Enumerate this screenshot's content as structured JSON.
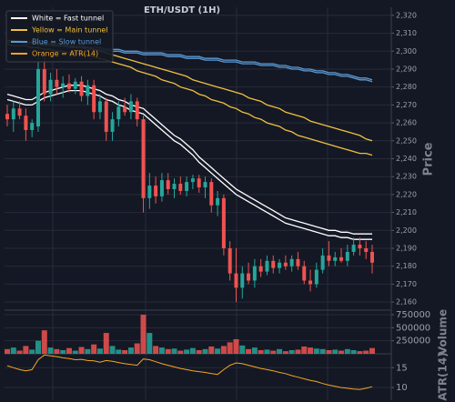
{
  "chart_data": {
    "type": "candlestick",
    "title": "ETH/USDT (1H)",
    "ylabel": "Price",
    "volume_label": "Volume",
    "atr_label": "ATR(14)",
    "up_color": "#26a69a",
    "down_color": "#ef5350",
    "atr_color": "#f5a623",
    "grid": true,
    "ylim": [
      2156,
      2324.5
    ],
    "yticks": [
      {
        "value": 2160,
        "label": "2,160"
      },
      {
        "value": 2170,
        "label": "2,170"
      },
      {
        "value": 2180,
        "label": "2,180"
      },
      {
        "value": 2190,
        "label": "2,190"
      },
      {
        "value": 2200,
        "label": "2,200"
      },
      {
        "value": 2210,
        "label": "2,210"
      },
      {
        "value": 2220,
        "label": "2,220"
      },
      {
        "value": 2230,
        "label": "2,230"
      },
      {
        "value": 2240,
        "label": "2,240"
      },
      {
        "value": 2250,
        "label": "2,250"
      },
      {
        "value": 2260,
        "label": "2,260"
      },
      {
        "value": 2270,
        "label": "2,270"
      },
      {
        "value": 2280,
        "label": "2,280"
      },
      {
        "value": 2290,
        "label": "2,290"
      },
      {
        "value": 2300,
        "label": "2,300"
      },
      {
        "value": 2310,
        "label": "2,310"
      },
      {
        "value": 2320,
        "label": "2,320"
      }
    ],
    "volume_ylim": [
      0,
      820000
    ],
    "volume_yticks": [
      250000,
      500000,
      750000
    ],
    "atr_ylim": [
      6.8,
      18.5
    ],
    "atr_yticks": [
      10,
      15
    ],
    "legend": [
      {
        "label": "White = Fast tunnel",
        "color": "#ffffff"
      },
      {
        "label": "Yellow = Main tunnel",
        "color": "#f0c040"
      },
      {
        "label": "Blue = Slow tunnel",
        "color": "#5b9bd5"
      },
      {
        "label": "Orange = ATR(14)",
        "color": "#f5a623"
      }
    ],
    "open": [
      2265,
      2262,
      2268,
      2264,
      2256,
      2258,
      2290,
      2276,
      2284,
      2280,
      2282,
      2279,
      2283,
      2275,
      2281,
      2266,
      2272,
      2255,
      2262,
      2269,
      2266,
      2272,
      2262,
      2218,
      2225,
      2219,
      2228,
      2223,
      2226,
      2222,
      2227,
      2229,
      2224,
      2227,
      2214,
      2218,
      2190,
      2176,
      2168,
      2176,
      2172,
      2180,
      2177,
      2183,
      2179,
      2182,
      2180,
      2184,
      2180,
      2172,
      2170,
      2178,
      2186,
      2183,
      2185,
      2183,
      2188,
      2192,
      2190,
      2188
    ],
    "high": [
      2270,
      2272,
      2272,
      2268,
      2262,
      2312,
      2300,
      2288,
      2290,
      2286,
      2287,
      2285,
      2286,
      2284,
      2284,
      2276,
      2274,
      2266,
      2272,
      2274,
      2276,
      2274,
      2264,
      2232,
      2230,
      2232,
      2232,
      2229,
      2230,
      2230,
      2231,
      2231,
      2230,
      2229,
      2222,
      2220,
      2194,
      2190,
      2180,
      2182,
      2184,
      2184,
      2186,
      2186,
      2184,
      2186,
      2186,
      2188,
      2183,
      2178,
      2182,
      2190,
      2194,
      2188,
      2190,
      2192,
      2196,
      2196,
      2194,
      2192
    ],
    "low": [
      2258,
      2255,
      2262,
      2250,
      2252,
      2255,
      2272,
      2272,
      2276,
      2274,
      2277,
      2276,
      2272,
      2270,
      2262,
      2262,
      2250,
      2250,
      2258,
      2264,
      2262,
      2258,
      2210,
      2212,
      2215,
      2216,
      2220,
      2218,
      2220,
      2219,
      2223,
      2221,
      2218,
      2210,
      2208,
      2186,
      2172,
      2160,
      2162,
      2170,
      2168,
      2174,
      2175,
      2176,
      2176,
      2178,
      2177,
      2178,
      2170,
      2166,
      2168,
      2176,
      2180,
      2180,
      2182,
      2180,
      2186,
      2186,
      2184,
      2176
    ],
    "close": [
      2262,
      2268,
      2264,
      2256,
      2260,
      2290,
      2276,
      2284,
      2280,
      2282,
      2279,
      2283,
      2275,
      2281,
      2266,
      2272,
      2255,
      2262,
      2269,
      2266,
      2272,
      2262,
      2218,
      2225,
      2219,
      2228,
      2223,
      2226,
      2222,
      2227,
      2229,
      2224,
      2227,
      2214,
      2218,
      2190,
      2176,
      2168,
      2176,
      2172,
      2180,
      2177,
      2183,
      2179,
      2182,
      2180,
      2184,
      2180,
      2172,
      2170,
      2178,
      2186,
      2183,
      2185,
      2183,
      2188,
      2192,
      2190,
      2188,
      2182
    ],
    "volume": [
      90000,
      120000,
      60000,
      150000,
      80000,
      250000,
      450000,
      120000,
      90000,
      70000,
      110000,
      60000,
      130000,
      90000,
      180000,
      100000,
      400000,
      150000,
      80000,
      70000,
      120000,
      200000,
      750000,
      400000,
      150000,
      120000,
      90000,
      100000,
      60000,
      80000,
      110000,
      70000,
      90000,
      140000,
      100000,
      150000,
      220000,
      280000,
      160000,
      90000,
      120000,
      70000,
      80000,
      60000,
      90000,
      50000,
      70000,
      80000,
      140000,
      120000,
      100000,
      90000,
      70000,
      80000,
      60000,
      90000,
      70000,
      50000,
      60000,
      110000
    ],
    "atr": [
      15.5,
      15,
      14.5,
      14.2,
      14.5,
      17,
      18.2,
      18,
      17.8,
      17.5,
      17.3,
      17,
      17.1,
      16.8,
      16.7,
      16.4,
      16.8,
      16.6,
      16.3,
      16,
      15.8,
      15.6,
      17.2,
      17,
      16.5,
      16,
      15.6,
      15.2,
      14.8,
      14.5,
      14.2,
      14,
      13.8,
      13.5,
      13.3,
      14.5,
      15.6,
      16.2,
      16,
      15.6,
      15.2,
      14.8,
      14.5,
      14.2,
      13.8,
      13.5,
      13,
      12.6,
      12.2,
      11.8,
      11.5,
      11,
      10.6,
      10.3,
      10,
      9.8,
      9.6,
      9.5,
      9.8,
      10.2
    ],
    "tunnels": [
      {
        "color": "#5b9bd5",
        "upper": [
          2306,
          2306,
          2306,
          2305,
          2305,
          2305,
          2304,
          2304,
          2304,
          2304,
          2303,
          2303,
          2303,
          2302,
          2302,
          2302,
          2301,
          2301,
          2301,
          2300,
          2300,
          2300,
          2299,
          2299,
          2299,
          2299,
          2298,
          2298,
          2298,
          2297,
          2297,
          2297,
          2296,
          2296,
          2296,
          2295,
          2295,
          2295,
          2294,
          2294,
          2294,
          2293,
          2293,
          2293,
          2292,
          2292,
          2291,
          2291,
          2290,
          2290,
          2289,
          2289,
          2288,
          2288,
          2287,
          2287,
          2286,
          2285,
          2285,
          2284
        ],
        "lower": [
          2305,
          2305,
          2305,
          2304,
          2304,
          2304,
          2303,
          2303,
          2303,
          2303,
          2302,
          2302,
          2302,
          2301,
          2301,
          2301,
          2300,
          2300,
          2300,
          2299,
          2299,
          2299,
          2298,
          2298,
          2298,
          2298,
          2297,
          2297,
          2297,
          2296,
          2296,
          2296,
          2295,
          2295,
          2295,
          2294,
          2294,
          2294,
          2293,
          2293,
          2293,
          2292,
          2292,
          2292,
          2291,
          2291,
          2290,
          2290,
          2289,
          2289,
          2288,
          2288,
          2287,
          2287,
          2286,
          2286,
          2285,
          2284,
          2284,
          2283
        ]
      },
      {
        "color": "#f0c040",
        "upper": [
          2306,
          2306,
          2305,
          2305,
          2305,
          2304,
          2304,
          2304,
          2303,
          2303,
          2303,
          2302,
          2302,
          2302,
          2301,
          2300,
          2299,
          2298,
          2297,
          2296,
          2295,
          2294,
          2293,
          2292,
          2291,
          2290,
          2289,
          2288,
          2287,
          2286,
          2284,
          2283,
          2282,
          2281,
          2280,
          2279,
          2278,
          2277,
          2276,
          2274,
          2273,
          2272,
          2270,
          2269,
          2268,
          2266,
          2265,
          2264,
          2263,
          2261,
          2260,
          2259,
          2258,
          2257,
          2256,
          2255,
          2254,
          2253,
          2251,
          2250
        ],
        "lower": [
          2304,
          2303,
          2303,
          2303,
          2302,
          2302,
          2301,
          2301,
          2300,
          2300,
          2299,
          2299,
          2298,
          2298,
          2297,
          2296,
          2295,
          2294,
          2293,
          2292,
          2291,
          2289,
          2288,
          2287,
          2286,
          2284,
          2283,
          2282,
          2280,
          2279,
          2278,
          2276,
          2275,
          2273,
          2272,
          2271,
          2269,
          2268,
          2266,
          2265,
          2263,
          2262,
          2260,
          2259,
          2258,
          2256,
          2255,
          2253,
          2252,
          2251,
          2250,
          2249,
          2248,
          2247,
          2246,
          2245,
          2244,
          2243,
          2243,
          2242
        ]
      },
      {
        "color": "#ffffff",
        "upper": [
          2276,
          2275,
          2274,
          2273,
          2273,
          2275,
          2277,
          2278,
          2279,
          2280,
          2281,
          2281,
          2281,
          2280,
          2279,
          2278,
          2276,
          2275,
          2273,
          2272,
          2270,
          2269,
          2268,
          2265,
          2262,
          2259,
          2256,
          2253,
          2251,
          2248,
          2245,
          2241,
          2238,
          2235,
          2232,
          2229,
          2226,
          2223,
          2221,
          2219,
          2217,
          2215,
          2213,
          2211,
          2209,
          2207,
          2206,
          2205,
          2204,
          2203,
          2202,
          2201,
          2200,
          2200,
          2199,
          2199,
          2198,
          2198,
          2198,
          2198
        ],
        "lower": [
          2273,
          2272,
          2271,
          2270,
          2270,
          2272,
          2274,
          2275,
          2276,
          2277,
          2278,
          2278,
          2278,
          2277,
          2276,
          2275,
          2273,
          2272,
          2270,
          2269,
          2267,
          2266,
          2265,
          2262,
          2259,
          2256,
          2253,
          2250,
          2248,
          2245,
          2242,
          2238,
          2235,
          2232,
          2229,
          2226,
          2223,
          2220,
          2218,
          2216,
          2214,
          2212,
          2210,
          2208,
          2206,
          2204,
          2203,
          2202,
          2201,
          2200,
          2199,
          2198,
          2197,
          2197,
          2196,
          2196,
          2195,
          2195,
          2195,
          2195
        ]
      }
    ]
  }
}
